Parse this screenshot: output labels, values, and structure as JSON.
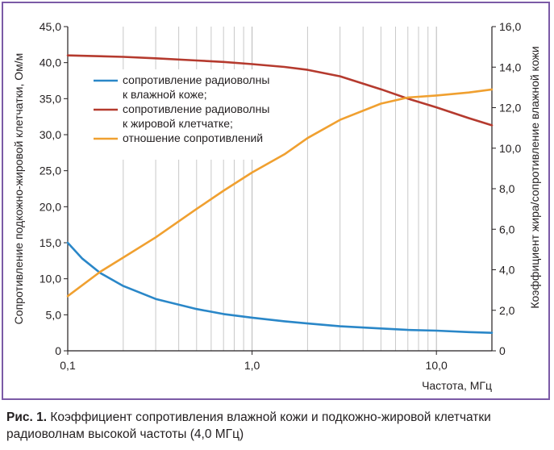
{
  "chart_data": {
    "type": "line",
    "x_scale": "log",
    "xlabel": "Частота, МГц",
    "ylabel": "Сопротивление подкожно-жировой клетчатки, Ом/м",
    "ylabel_right": "Коэффициент жира/сопротивление влажной кожи",
    "xlim": [
      0.1,
      20
    ],
    "ylim": [
      0,
      45
    ],
    "ylim_right": [
      0,
      16
    ],
    "x_ticks": [
      {
        "value": 0.1,
        "label": "0,1"
      },
      {
        "value": 1,
        "label": "1,0"
      },
      {
        "value": 10,
        "label": "10,0"
      }
    ],
    "y_ticks": [
      {
        "value": 0,
        "label": "0"
      },
      {
        "value": 5,
        "label": "5,0"
      },
      {
        "value": 10,
        "label": "10,0"
      },
      {
        "value": 15,
        "label": "15,0"
      },
      {
        "value": 20,
        "label": "20,0"
      },
      {
        "value": 25,
        "label": "25,0"
      },
      {
        "value": 30,
        "label": "30,0"
      },
      {
        "value": 35,
        "label": "35,0"
      },
      {
        "value": 40,
        "label": "40,0"
      },
      {
        "value": 45,
        "label": "45,0"
      }
    ],
    "y_ticks_right": [
      {
        "value": 0,
        "label": "0"
      },
      {
        "value": 2,
        "label": "2,0"
      },
      {
        "value": 4,
        "label": "4,0"
      },
      {
        "value": 6,
        "label": "6,0"
      },
      {
        "value": 8,
        "label": "8,0"
      },
      {
        "value": 10,
        "label": "10,0"
      },
      {
        "value": 12,
        "label": "12,0"
      },
      {
        "value": 14,
        "label": "14,0"
      },
      {
        "value": 16,
        "label": "16,0"
      }
    ],
    "grid": "vertical",
    "legend_position": "upper-left",
    "series": [
      {
        "name": "сопротивление радиоволны к влажной коже;",
        "legend_lines": [
          "сопротивление радиоволны",
          "к влажной коже;"
        ],
        "color": "#2a87c8",
        "axis": "left",
        "x": [
          0.1,
          0.12,
          0.15,
          0.2,
          0.3,
          0.5,
          0.7,
          1,
          1.5,
          2,
          3,
          5,
          7,
          10,
          15,
          20
        ],
        "y": [
          15.0,
          12.8,
          10.8,
          9.0,
          7.2,
          5.8,
          5.1,
          4.6,
          4.1,
          3.8,
          3.4,
          3.1,
          2.9,
          2.8,
          2.6,
          2.5
        ]
      },
      {
        "name": "сопротивление радиоволны к жировой клетчатке;",
        "legend_lines": [
          "сопротивление радиоволны",
          "к жировой клетчатке;"
        ],
        "color": "#b53a2e",
        "axis": "left",
        "x": [
          0.1,
          0.2,
          0.3,
          0.5,
          0.7,
          1,
          1.5,
          2,
          3,
          5,
          7,
          10,
          15,
          20
        ],
        "y": [
          41.0,
          40.8,
          40.6,
          40.3,
          40.1,
          39.8,
          39.4,
          39.0,
          38.1,
          36.3,
          35.0,
          33.8,
          32.3,
          31.3
        ]
      },
      {
        "name": "отношение сопротивлений",
        "legend_lines": [
          "отношение сопротивлений"
        ],
        "color": "#f0a030",
        "axis": "right",
        "x": [
          0.1,
          0.15,
          0.2,
          0.3,
          0.5,
          0.7,
          1,
          1.5,
          2,
          3,
          5,
          7,
          10,
          15,
          20
        ],
        "y": [
          2.7,
          3.9,
          4.6,
          5.6,
          7.0,
          7.9,
          8.8,
          9.7,
          10.5,
          11.4,
          12.2,
          12.5,
          12.6,
          12.75,
          12.9
        ]
      }
    ]
  },
  "caption": {
    "label": "Рис. 1.",
    "text": " Коэффициент сопротивления влажной кожи и подкожно-жировой клетчатки радиоволнам высокой частоты (4,0 МГц)"
  }
}
